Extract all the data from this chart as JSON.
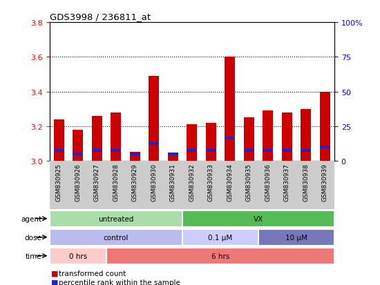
{
  "title": "GDS3998 / 236811_at",
  "samples": [
    "GSM830925",
    "GSM830926",
    "GSM830927",
    "GSM830928",
    "GSM830929",
    "GSM830930",
    "GSM830931",
    "GSM830932",
    "GSM830933",
    "GSM830934",
    "GSM830935",
    "GSM830936",
    "GSM830937",
    "GSM830938",
    "GSM830939"
  ],
  "transformed_counts": [
    3.24,
    3.18,
    3.26,
    3.28,
    3.05,
    3.49,
    3.04,
    3.21,
    3.22,
    3.6,
    3.25,
    3.29,
    3.28,
    3.3,
    3.4
  ],
  "percentile_ranks": [
    3.06,
    3.04,
    3.06,
    3.06,
    3.04,
    3.1,
    3.04,
    3.06,
    3.06,
    3.13,
    3.06,
    3.06,
    3.06,
    3.06,
    3.08
  ],
  "ylim_left": [
    3.0,
    3.8
  ],
  "ylim_right": [
    0,
    100
  ],
  "yticks_left": [
    3.0,
    3.2,
    3.4,
    3.6,
    3.8
  ],
  "yticks_right": [
    0,
    25,
    50,
    75,
    100
  ],
  "ytick_labels_right": [
    "0",
    "25",
    "50",
    "75",
    "100%"
  ],
  "bar_color": "#cc0000",
  "percentile_color": "#2222cc",
  "agent_segs": [
    {
      "start": 0,
      "end": 7,
      "color": "#aaddaa",
      "label": "untreated"
    },
    {
      "start": 7,
      "end": 15,
      "color": "#55bb55",
      "label": "VX"
    }
  ],
  "dose_segs": [
    {
      "start": 0,
      "end": 7,
      "color": "#bbbbee",
      "label": "control"
    },
    {
      "start": 7,
      "end": 11,
      "color": "#ccccff",
      "label": "0.1 μM"
    },
    {
      "start": 11,
      "end": 15,
      "color": "#7777bb",
      "label": "10 μM"
    }
  ],
  "time_segs": [
    {
      "start": 0,
      "end": 3,
      "color": "#ffcccc",
      "label": "0 hrs"
    },
    {
      "start": 3,
      "end": 15,
      "color": "#ee7777",
      "label": "6 hrs"
    }
  ],
  "row_labels": [
    "agent",
    "dose",
    "time"
  ],
  "legend_labels": [
    "transformed count",
    "percentile rank within the sample"
  ],
  "legend_colors": [
    "#cc0000",
    "#2222cc"
  ]
}
